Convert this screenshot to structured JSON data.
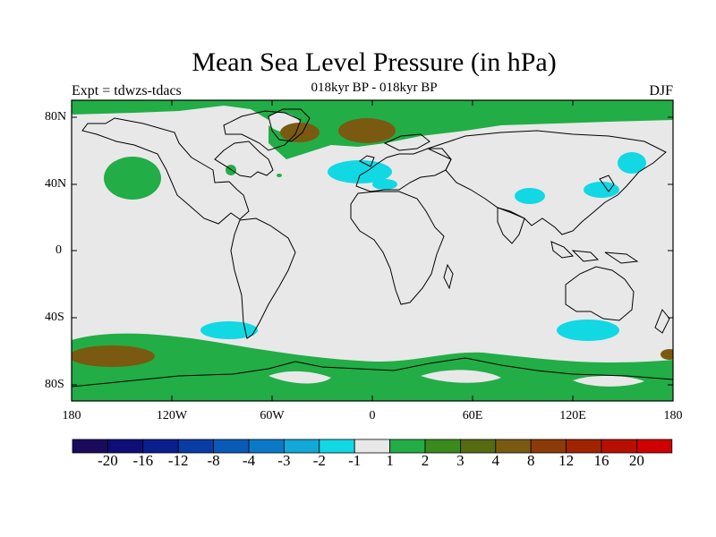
{
  "title": "Mean Sea Level Pressure (in hPa)",
  "subtitle": "018kyr BP - 018kyr BP",
  "left_label": "Expt = tdwzs-tdacs",
  "right_label": "DJF",
  "lat_labels": [
    "80N",
    "40N",
    "0",
    "40S",
    "80S"
  ],
  "lon_labels": [
    "180",
    "120W",
    "60W",
    "0",
    "60E",
    "120E",
    "180"
  ],
  "colorbar": {
    "colors": [
      "#1a0a5c",
      "#0e0e78",
      "#0a1e90",
      "#0a3ca5",
      "#0a5ab8",
      "#0a7ac8",
      "#12a8d8",
      "#12d8e4",
      "#e8e8e8",
      "#22ad46",
      "#3a8a1c",
      "#566a10",
      "#7a5a10",
      "#8c3a08",
      "#a02400",
      "#b81000",
      "#d00000"
    ],
    "labels": [
      "-20",
      "-16",
      "-12",
      "-8",
      "-4",
      "-3",
      "-2",
      "-1",
      "1",
      "2",
      "3",
      "4",
      "8",
      "12",
      "16",
      "20"
    ]
  },
  "colors": {
    "background": "#e8e8e8",
    "positive_1": "#22ad46",
    "positive_3": "#7a5a10",
    "negative_1": "#12d8e4",
    "negative_2": "#12a8d8"
  }
}
